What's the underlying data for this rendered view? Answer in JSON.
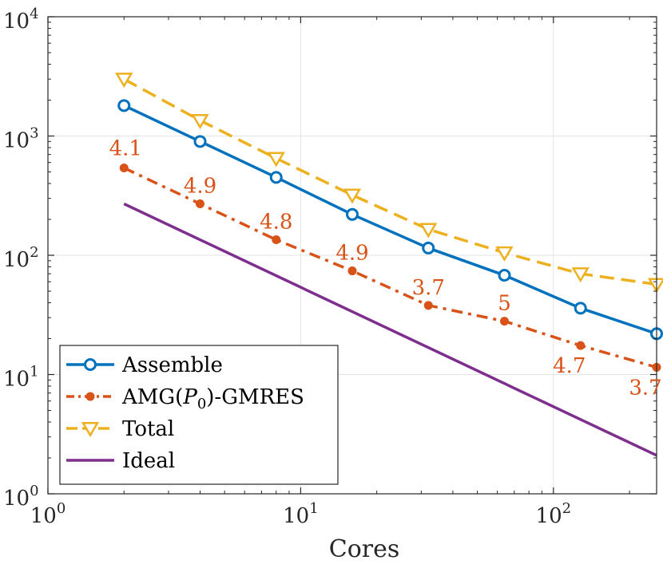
{
  "chart_data": {
    "type": "line",
    "scale": "log-log",
    "title": "",
    "xlabel": "Cores",
    "ylabel": "",
    "xlim": [
      1,
      256
    ],
    "ylim": [
      1,
      10000
    ],
    "grid": true,
    "x_ticks": [
      {
        "value": 1,
        "base": "10",
        "exp": "0"
      },
      {
        "value": 10,
        "base": "10",
        "exp": "1"
      },
      {
        "value": 100,
        "base": "10",
        "exp": "2"
      }
    ],
    "y_ticks": [
      {
        "value": 1,
        "base": "10",
        "exp": "0"
      },
      {
        "value": 10,
        "base": "10",
        "exp": "1"
      },
      {
        "value": 100,
        "base": "10",
        "exp": "2"
      },
      {
        "value": 1000,
        "base": "10",
        "exp": "3"
      },
      {
        "value": 10000,
        "base": "10",
        "exp": "4"
      }
    ],
    "x": [
      2,
      4,
      8,
      16,
      32,
      64,
      128,
      256
    ],
    "series": [
      {
        "name": "Assemble",
        "color": "#0072BD",
        "style": "solid",
        "marker": "circle",
        "values": [
          1800,
          900,
          450,
          220,
          115,
          68,
          36,
          22
        ]
      },
      {
        "name": "AMG(P0)-GMRES",
        "color": "#D95319",
        "style": "dashdot",
        "marker": "dot",
        "values": [
          540,
          270,
          135,
          74,
          38,
          28,
          17.5,
          11.5
        ]
      },
      {
        "name": "Total",
        "color": "#EDB120",
        "style": "dashed",
        "marker": "triangle-down",
        "values": [
          3000,
          1350,
          650,
          320,
          165,
          105,
          70,
          57
        ]
      },
      {
        "name": "Ideal",
        "color": "#7E2F8E",
        "style": "solid",
        "marker": "none",
        "x": [
          2,
          256
        ],
        "values": [
          270,
          2.1
        ]
      }
    ],
    "annotations": [
      {
        "text": "4.1",
        "series": "AMG(P0)-GMRES",
        "index": 0,
        "placement": "above"
      },
      {
        "text": "4.9",
        "series": "AMG(P0)-GMRES",
        "index": 1,
        "placement": "above"
      },
      {
        "text": "4.8",
        "series": "AMG(P0)-GMRES",
        "index": 2,
        "placement": "above"
      },
      {
        "text": "4.9",
        "series": "AMG(P0)-GMRES",
        "index": 3,
        "placement": "above"
      },
      {
        "text": "3.7",
        "series": "AMG(P0)-GMRES",
        "index": 4,
        "placement": "above"
      },
      {
        "text": "5",
        "series": "AMG(P0)-GMRES",
        "index": 5,
        "placement": "above"
      },
      {
        "text": "4.7",
        "series": "AMG(P0)-GMRES",
        "index": 6,
        "placement": "below"
      },
      {
        "text": "3.7",
        "series": "AMG(P0)-GMRES",
        "index": 7,
        "placement": "below"
      }
    ],
    "legend": {
      "placement": "bottom-left",
      "entries": [
        {
          "series": "Assemble",
          "label": "Assemble"
        },
        {
          "series": "AMG(P0)-GMRES",
          "label_pre": "AMG(",
          "label_var": "P",
          "label_sub": "0",
          "label_post": ")-GMRES"
        },
        {
          "series": "Total",
          "label": "Total"
        },
        {
          "series": "Ideal",
          "label": "Ideal"
        }
      ]
    }
  }
}
